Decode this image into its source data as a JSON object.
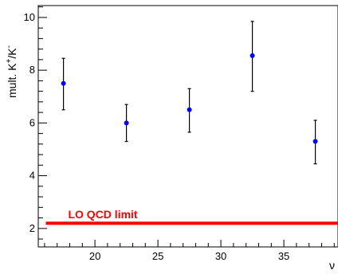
{
  "chart_data": {
    "type": "scatter",
    "title": "",
    "xlabel": "ν",
    "ylabel": "mult. K",
    "ylabel_sup1": "+",
    "ylabel_mid": "/K",
    "ylabel_sup2": "-",
    "xlim": [
      15.5,
      39.3
    ],
    "ylim": [
      1.3,
      10.45
    ],
    "xticks": [
      20,
      25,
      30,
      35
    ],
    "yticks": [
      2,
      4,
      6,
      8,
      10
    ],
    "grid": false,
    "series": [
      {
        "x": [
          17.5,
          22.5,
          27.5,
          32.5,
          37.5
        ],
        "y": [
          7.5,
          6.0,
          6.5,
          8.55,
          5.3
        ],
        "yerr_low": [
          1.0,
          0.7,
          0.85,
          1.35,
          0.85
        ],
        "yerr_high": [
          0.95,
          0.7,
          0.8,
          1.3,
          0.8
        ],
        "color": "#0000ff"
      }
    ],
    "reference_line": {
      "label": "LO QCD limit",
      "y": 2.2,
      "x_range": [
        16.1,
        39.3
      ],
      "color": "#ff0000"
    }
  }
}
